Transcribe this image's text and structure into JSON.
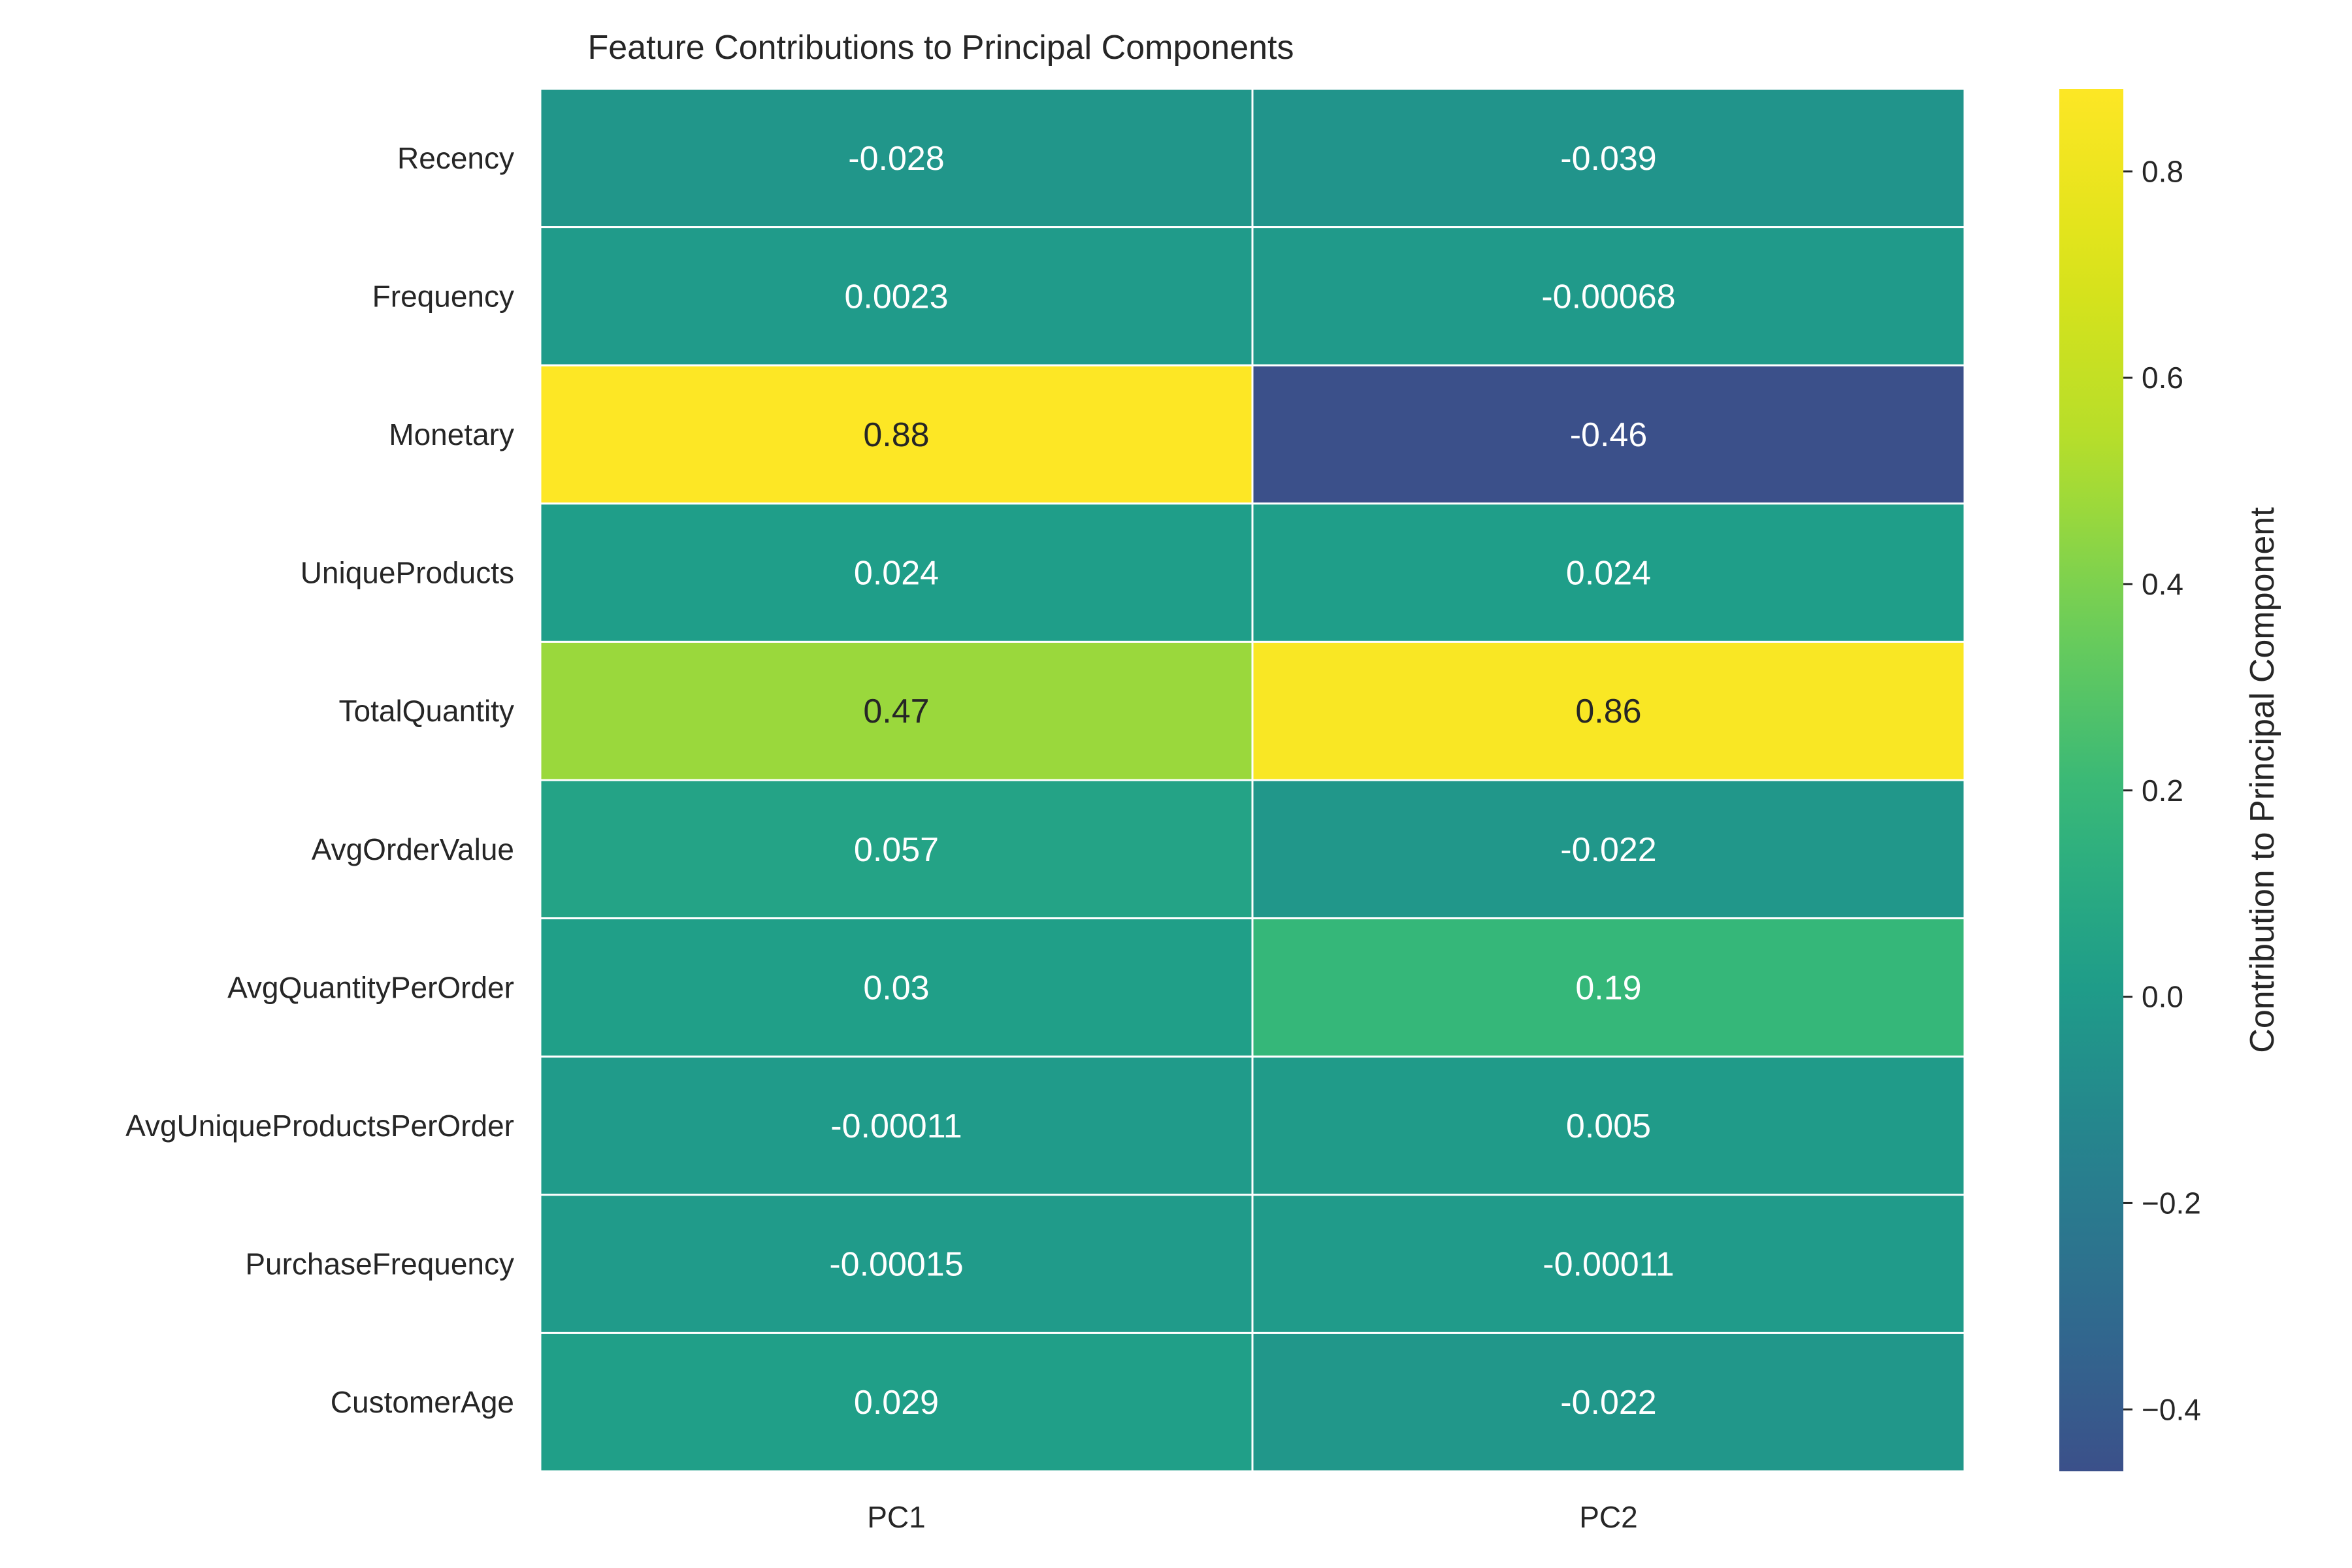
{
  "chart_data": {
    "type": "heatmap",
    "title": "Feature Contributions to Principal Components",
    "rows": [
      "Recency",
      "Frequency",
      "Monetary",
      "UniqueProducts",
      "TotalQuantity",
      "AvgOrderValue",
      "AvgQuantityPerOrder",
      "AvgUniqueProductsPerOrder",
      "PurchaseFrequency",
      "CustomerAge"
    ],
    "columns": [
      "PC1",
      "PC2"
    ],
    "values": [
      [
        -0.028,
        -0.039
      ],
      [
        0.0023,
        -0.00068
      ],
      [
        0.88,
        -0.46
      ],
      [
        0.024,
        0.024
      ],
      [
        0.47,
        0.86
      ],
      [
        0.057,
        -0.022
      ],
      [
        0.03,
        0.19
      ],
      [
        -0.00011,
        0.005
      ],
      [
        -0.00015,
        -0.00011
      ],
      [
        0.029,
        -0.022
      ]
    ],
    "labels": [
      [
        "-0.028",
        "-0.039"
      ],
      [
        "0.0023",
        "-0.00068"
      ],
      [
        "0.88",
        "-0.46"
      ],
      [
        "0.024",
        "0.024"
      ],
      [
        "0.47",
        "0.86"
      ],
      [
        "0.057",
        "-0.022"
      ],
      [
        "0.03",
        "0.19"
      ],
      [
        "-0.00011",
        "0.005"
      ],
      [
        "-0.00015",
        "-0.00011"
      ],
      [
        "0.029",
        "-0.022"
      ]
    ],
    "colormap": "viridis",
    "colorbar": {
      "label": "Contribution to Principal Component",
      "vmin": -0.46,
      "vmax": 0.88,
      "ticks": [
        -0.4,
        -0.2,
        0.0,
        0.2,
        0.4,
        0.6,
        0.8
      ],
      "tick_labels": [
        "−0.4",
        "−0.2",
        "0.0",
        "0.2",
        "0.4",
        "0.6",
        "0.8"
      ]
    },
    "grid": true,
    "cell_border_color": "#ffffff"
  }
}
